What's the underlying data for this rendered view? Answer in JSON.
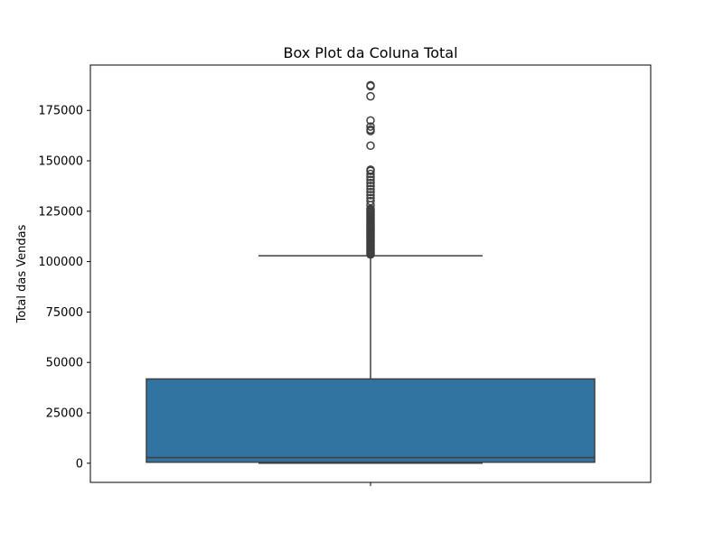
{
  "chart_data": {
    "type": "box",
    "title": "Box Plot da Coluna Total",
    "xlabel": "",
    "ylabel": "Total das Vendas",
    "ylim": [
      -9500,
      197500
    ],
    "yticks": [
      0,
      25000,
      50000,
      75000,
      100000,
      125000,
      150000,
      175000
    ],
    "ytick_labels": [
      "0",
      "25000",
      "50000",
      "75000",
      "100000",
      "125000",
      "150000",
      "175000"
    ],
    "grid": false,
    "box": {
      "whisker_low": 0,
      "q1": 500,
      "median": 2800,
      "q3": 41800,
      "whisker_high": 102900
    },
    "outliers": [
      103500,
      104000,
      104600,
      105200,
      105800,
      106400,
      107000,
      107600,
      108200,
      108800,
      109400,
      110000,
      110600,
      111200,
      111800,
      112400,
      113000,
      113600,
      114200,
      114800,
      115400,
      116000,
      116600,
      117200,
      117800,
      118400,
      119000,
      119600,
      120200,
      120800,
      121400,
      122000,
      122600,
      123200,
      123800,
      124400,
      125000,
      125600,
      126200,
      128000,
      130000,
      131500,
      133000,
      134500,
      136000,
      137500,
      139000,
      140500,
      142000,
      143500,
      145000,
      145600,
      157500,
      164800,
      165500,
      167000,
      170000,
      182000,
      187000,
      187500
    ],
    "colors": {
      "box_fill": "#3274a1",
      "lines": "#3f3f3f"
    }
  }
}
